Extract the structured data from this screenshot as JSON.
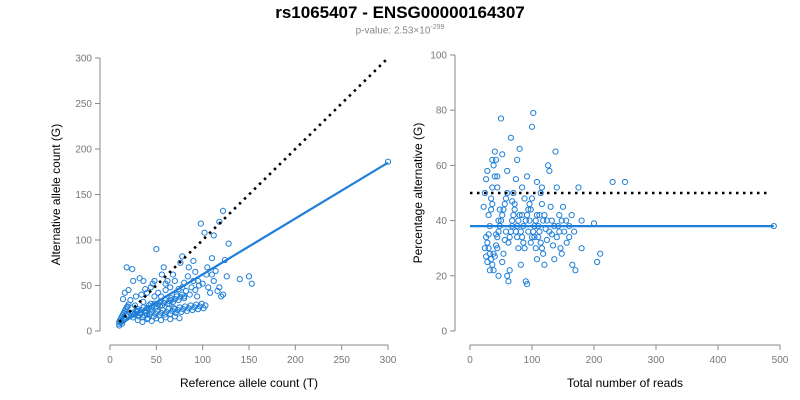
{
  "title": "rs1065407 - ENSG00000164307",
  "subtitle": {
    "prefix": "p-value: 2.53×10",
    "exponent": "-299"
  },
  "colors": {
    "points": "#1f7fd8",
    "fit": "#1f7fd8",
    "reference": "#000000",
    "axis": "#888888"
  },
  "chart_data": [
    {
      "type": "scatter",
      "name": "left-panel",
      "xlabel": "Reference allele count (T)",
      "ylabel": "Alternative allele count (G)",
      "xlim": [
        0,
        300
      ],
      "ylim": [
        0,
        300
      ],
      "xticks": [
        0,
        50,
        100,
        150,
        200,
        250,
        300
      ],
      "yticks": [
        0,
        50,
        100,
        150,
        200,
        250,
        300
      ],
      "reference_line": {
        "style": "dotted",
        "x": [
          10,
          300
        ],
        "y": [
          10,
          300
        ]
      },
      "fit_line": {
        "style": "solid",
        "x": [
          10,
          300
        ],
        "y": [
          7,
          185
        ]
      },
      "outlier_points": [
        [
          300,
          186
        ],
        [
          90,
          77
        ],
        [
          140,
          57
        ],
        [
          95,
          55
        ]
      ],
      "cluster_points": [
        [
          14,
          35
        ],
        [
          18,
          70
        ],
        [
          16,
          42
        ],
        [
          20,
          45
        ],
        [
          25,
          55
        ],
        [
          27,
          28
        ],
        [
          30,
          22
        ],
        [
          34,
          40
        ],
        [
          36,
          32
        ],
        [
          38,
          46
        ],
        [
          40,
          18
        ],
        [
          42,
          25
        ],
        [
          44,
          30
        ],
        [
          46,
          52
        ],
        [
          48,
          38
        ],
        [
          50,
          90
        ],
        [
          52,
          42
        ],
        [
          54,
          28
        ],
        [
          56,
          62
        ],
        [
          58,
          70
        ],
        [
          60,
          45
        ],
        [
          62,
          55
        ],
        [
          64,
          30
        ],
        [
          66,
          34
        ],
        [
          68,
          62
        ],
        [
          70,
          24
        ],
        [
          72,
          40
        ],
        [
          74,
          46
        ],
        [
          76,
          75
        ],
        [
          78,
          82
        ],
        [
          80,
          38
        ],
        [
          82,
          44
        ],
        [
          84,
          60
        ],
        [
          86,
          40
        ],
        [
          88,
          48
        ],
        [
          90,
          55
        ],
        [
          92,
          45
        ],
        [
          94,
          38
        ],
        [
          96,
          50
        ],
        [
          98,
          118
        ],
        [
          100,
          52
        ],
        [
          102,
          108
        ],
        [
          104,
          62
        ],
        [
          106,
          48
        ],
        [
          108,
          42
        ],
        [
          110,
          62
        ],
        [
          112,
          55
        ],
        [
          114,
          66
        ],
        [
          116,
          44
        ],
        [
          118,
          48
        ],
        [
          120,
          38
        ],
        [
          122,
          40
        ],
        [
          124,
          78
        ],
        [
          126,
          60
        ],
        [
          128,
          96
        ],
        [
          110,
          80
        ],
        [
          105,
          70
        ],
        [
          112,
          105
        ],
        [
          118,
          120
        ],
        [
          122,
          132
        ],
        [
          150,
          60
        ],
        [
          153,
          52
        ],
        [
          80,
          53
        ],
        [
          85,
          70
        ],
        [
          92,
          65
        ],
        [
          78,
          48
        ],
        [
          70,
          55
        ],
        [
          65,
          48
        ],
        [
          60,
          52
        ],
        [
          55,
          38
        ],
        [
          48,
          55
        ],
        [
          44,
          48
        ],
        [
          40,
          42
        ],
        [
          36,
          55
        ],
        [
          32,
          58
        ],
        [
          28,
          38
        ],
        [
          24,
          68
        ],
        [
          22,
          34
        ],
        [
          20,
          29
        ],
        [
          19,
          27
        ],
        [
          18,
          26
        ],
        [
          17,
          24
        ],
        [
          16,
          22
        ],
        [
          15,
          20
        ],
        [
          14,
          18
        ],
        [
          13,
          16
        ],
        [
          12,
          14
        ],
        [
          11,
          12
        ],
        [
          10,
          10
        ],
        [
          10,
          8
        ],
        [
          10,
          6
        ],
        [
          12,
          10
        ],
        [
          13,
          8
        ],
        [
          14,
          11
        ],
        [
          15,
          14
        ],
        [
          16,
          13
        ],
        [
          18,
          17
        ],
        [
          20,
          18
        ],
        [
          22,
          19
        ],
        [
          24,
          20
        ],
        [
          26,
          18
        ],
        [
          28,
          22
        ],
        [
          30,
          24
        ],
        [
          32,
          20
        ],
        [
          34,
          23
        ],
        [
          36,
          26
        ],
        [
          38,
          22
        ],
        [
          40,
          25
        ],
        [
          42,
          28
        ],
        [
          44,
          24
        ],
        [
          46,
          27
        ],
        [
          48,
          30
        ],
        [
          50,
          26
        ],
        [
          52,
          29
        ],
        [
          54,
          32
        ],
        [
          56,
          28
        ],
        [
          58,
          31
        ],
        [
          60,
          34
        ],
        [
          62,
          30
        ],
        [
          64,
          33
        ],
        [
          66,
          36
        ],
        [
          68,
          32
        ],
        [
          70,
          35
        ],
        [
          72,
          38
        ],
        [
          74,
          34
        ],
        [
          76,
          37
        ],
        [
          78,
          40
        ],
        [
          80,
          36
        ],
        [
          25,
          15
        ],
        [
          27,
          18
        ],
        [
          29,
          21
        ],
        [
          31,
          16
        ],
        [
          33,
          19
        ],
        [
          35,
          15
        ],
        [
          37,
          17
        ],
        [
          39,
          20
        ],
        [
          41,
          14
        ],
        [
          43,
          18
        ],
        [
          45,
          21
        ],
        [
          47,
          16
        ],
        [
          49,
          19
        ],
        [
          51,
          22
        ],
        [
          53,
          17
        ],
        [
          55,
          20
        ],
        [
          57,
          23
        ],
        [
          59,
          18
        ],
        [
          61,
          21
        ],
        [
          63,
          24
        ],
        [
          65,
          19
        ],
        [
          67,
          22
        ],
        [
          69,
          25
        ],
        [
          71,
          20
        ],
        [
          73,
          23
        ],
        [
          75,
          26
        ],
        [
          77,
          21
        ],
        [
          79,
          24
        ],
        [
          81,
          27
        ],
        [
          83,
          22
        ],
        [
          85,
          25
        ],
        [
          87,
          28
        ],
        [
          89,
          23
        ],
        [
          91,
          26
        ],
        [
          93,
          29
        ],
        [
          95,
          24
        ],
        [
          97,
          27
        ],
        [
          99,
          30
        ],
        [
          101,
          25
        ],
        [
          103,
          28
        ],
        [
          30,
          12
        ],
        [
          35,
          10
        ],
        [
          40,
          13
        ],
        [
          45,
          11
        ],
        [
          50,
          14
        ],
        [
          55,
          12
        ],
        [
          60,
          15
        ],
        [
          65,
          13
        ],
        [
          70,
          16
        ],
        [
          75,
          14
        ]
      ]
    },
    {
      "type": "scatter",
      "name": "right-panel",
      "xlabel": "Total number of reads",
      "ylabel": "Percentage alternative (G)",
      "xlim": [
        0,
        500
      ],
      "ylim": [
        0,
        100
      ],
      "xticks": [
        0,
        100,
        200,
        300,
        400,
        500
      ],
      "yticks": [
        0,
        20,
        40,
        60,
        80,
        100
      ],
      "reference_line": {
        "style": "dotted",
        "x": [
          0,
          480
        ],
        "y": [
          50,
          50
        ]
      },
      "fit_line": {
        "style": "solid",
        "x": [
          0,
          490
        ],
        "y": [
          38,
          38
        ]
      },
      "outlier_points": [
        [
          490,
          38
        ],
        [
          250,
          54
        ],
        [
          230,
          54
        ],
        [
          200,
          39
        ],
        [
          210,
          28
        ],
        [
          205,
          25
        ],
        [
          180,
          40
        ]
      ],
      "cluster_points": [
        [
          22,
          45
        ],
        [
          24,
          50
        ],
        [
          26,
          55
        ],
        [
          28,
          58
        ],
        [
          30,
          42
        ],
        [
          32,
          38
        ],
        [
          34,
          48
        ],
        [
          36,
          52
        ],
        [
          38,
          60
        ],
        [
          40,
          65
        ],
        [
          42,
          35
        ],
        [
          44,
          30
        ],
        [
          46,
          40
        ],
        [
          48,
          44
        ],
        [
          50,
          77
        ],
        [
          52,
          25
        ],
        [
          54,
          28
        ],
        [
          56,
          33
        ],
        [
          58,
          36
        ],
        [
          60,
          20
        ],
        [
          62,
          18
        ],
        [
          64,
          22
        ],
        [
          66,
          70
        ],
        [
          68,
          40
        ],
        [
          70,
          50
        ],
        [
          72,
          46
        ],
        [
          74,
          55
        ],
        [
          76,
          34
        ],
        [
          78,
          30
        ],
        [
          80,
          66
        ],
        [
          82,
          24
        ],
        [
          84,
          42
        ],
        [
          86,
          38
        ],
        [
          88,
          48
        ],
        [
          90,
          18
        ],
        [
          92,
          17
        ],
        [
          94,
          36
        ],
        [
          96,
          40
        ],
        [
          98,
          44
        ],
        [
          100,
          74
        ],
        [
          102,
          79
        ],
        [
          104,
          38
        ],
        [
          106,
          30
        ],
        [
          108,
          26
        ],
        [
          110,
          34
        ],
        [
          112,
          42
        ],
        [
          114,
          50
        ],
        [
          116,
          46
        ],
        [
          118,
          28
        ],
        [
          120,
          24
        ],
        [
          122,
          37
        ],
        [
          124,
          40
        ],
        [
          126,
          60
        ],
        [
          128,
          58
        ],
        [
          130,
          45
        ],
        [
          132,
          35
        ],
        [
          134,
          31
        ],
        [
          136,
          26
        ],
        [
          138,
          65
        ],
        [
          140,
          52
        ],
        [
          142,
          38
        ],
        [
          144,
          36
        ],
        [
          146,
          30
        ],
        [
          148,
          28
        ],
        [
          150,
          45
        ],
        [
          155,
          40
        ],
        [
          160,
          34
        ],
        [
          165,
          24
        ],
        [
          170,
          22
        ],
        [
          175,
          52
        ],
        [
          180,
          30
        ],
        [
          26,
          34
        ],
        [
          28,
          32
        ],
        [
          30,
          30
        ],
        [
          32,
          28
        ],
        [
          34,
          26
        ],
        [
          36,
          24
        ],
        [
          38,
          22
        ],
        [
          40,
          27
        ],
        [
          42,
          31
        ],
        [
          44,
          34
        ],
        [
          46,
          36
        ],
        [
          48,
          38
        ],
        [
          50,
          40
        ],
        [
          52,
          42
        ],
        [
          54,
          44
        ],
        [
          56,
          46
        ],
        [
          58,
          48
        ],
        [
          60,
          50
        ],
        [
          62,
          32
        ],
        [
          64,
          34
        ],
        [
          66,
          36
        ],
        [
          68,
          38
        ],
        [
          70,
          42
        ],
        [
          72,
          44
        ],
        [
          74,
          36
        ],
        [
          76,
          38
        ],
        [
          78,
          40
        ],
        [
          80,
          42
        ],
        [
          82,
          36
        ],
        [
          84,
          34
        ],
        [
          86,
          32
        ],
        [
          88,
          30
        ],
        [
          90,
          40
        ],
        [
          92,
          42
        ],
        [
          94,
          44
        ],
        [
          96,
          46
        ],
        [
          98,
          32
        ],
        [
          100,
          34
        ],
        [
          102,
          36
        ],
        [
          104,
          34
        ],
        [
          106,
          40
        ],
        [
          108,
          42
        ],
        [
          110,
          38
        ],
        [
          112,
          36
        ],
        [
          114,
          32
        ],
        [
          116,
          30
        ],
        [
          118,
          40
        ],
        [
          120,
          42
        ],
        [
          124,
          33
        ],
        [
          128,
          36
        ],
        [
          132,
          40
        ],
        [
          136,
          38
        ],
        [
          140,
          34
        ],
        [
          144,
          42
        ],
        [
          148,
          40
        ],
        [
          152,
          36
        ],
        [
          156,
          32
        ],
        [
          160,
          38
        ],
        [
          164,
          42
        ],
        [
          168,
          36
        ],
        [
          36,
          62
        ],
        [
          44,
          56
        ],
        [
          52,
          64
        ],
        [
          60,
          58
        ],
        [
          68,
          47
        ],
        [
          76,
          62
        ],
        [
          84,
          52
        ],
        [
          92,
          56
        ],
        [
          100,
          48
        ],
        [
          108,
          54
        ],
        [
          116,
          52
        ],
        [
          24,
          30
        ],
        [
          26,
          27
        ],
        [
          28,
          25
        ],
        [
          30,
          35
        ],
        [
          32,
          22
        ],
        [
          34,
          44
        ],
        [
          36,
          46
        ],
        [
          38,
          28
        ],
        [
          40,
          56
        ],
        [
          42,
          62
        ],
        [
          44,
          52
        ],
        [
          46,
          20
        ]
      ]
    }
  ]
}
